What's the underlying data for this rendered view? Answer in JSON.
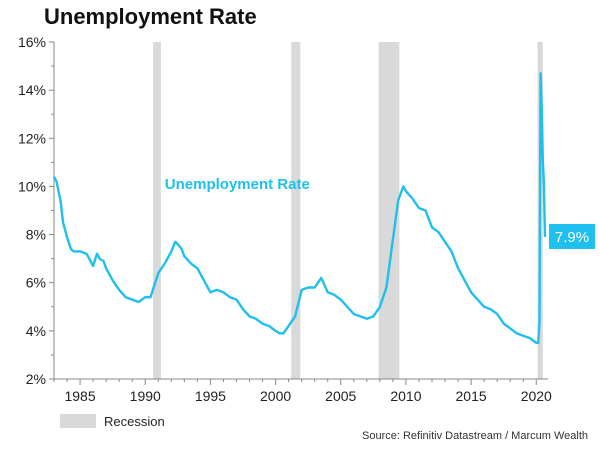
{
  "title": "Unemployment Rate",
  "source": "Source: Refinitiv Datastream / Marcum Wealth",
  "colors": {
    "line": "#1fbfee",
    "recession": "#d9d9d9",
    "axis": "#888888"
  },
  "chart_data": {
    "type": "line",
    "title": "Unemployment Rate",
    "xlabel": "",
    "ylabel": "",
    "xlim": [
      1983.0,
      2020.9
    ],
    "ylim": [
      2,
      16
    ],
    "y_ticks": [
      2,
      4,
      6,
      8,
      10,
      12,
      14,
      16
    ],
    "y_tick_labels": [
      "2%",
      "4%",
      "6%",
      "8%",
      "10%",
      "12%",
      "14%",
      "16%"
    ],
    "x_ticks": [
      1985,
      1990,
      1995,
      2000,
      2005,
      2010,
      2015,
      2020
    ],
    "x_tick_labels": [
      "1985",
      "1990",
      "1995",
      "2000",
      "2005",
      "2010",
      "2015",
      "2020"
    ],
    "grid": false,
    "series": [
      {
        "name": "Unemployment Rate",
        "x": [
          1983.0,
          1983.2,
          1983.5,
          1983.7,
          1984.0,
          1984.3,
          1984.5,
          1985.0,
          1985.5,
          1986.0,
          1986.3,
          1986.5,
          1986.8,
          1987.0,
          1987.5,
          1988.0,
          1988.5,
          1989.0,
          1989.5,
          1990.0,
          1990.4,
          1990.7,
          1991.0,
          1991.5,
          1992.0,
          1992.3,
          1992.5,
          1992.8,
          1993.0,
          1993.5,
          1994.0,
          1994.5,
          1995.0,
          1995.5,
          1996.0,
          1996.5,
          1997.0,
          1997.5,
          1998.0,
          1998.5,
          1999.0,
          1999.5,
          2000.0,
          2000.3,
          2000.6,
          2001.0,
          2001.5,
          2002.0,
          2002.5,
          2003.0,
          2003.5,
          2004.0,
          2004.5,
          2005.0,
          2005.5,
          2006.0,
          2006.5,
          2007.0,
          2007.5,
          2008.0,
          2008.5,
          2009.0,
          2009.4,
          2009.8,
          2010.0,
          2010.5,
          2011.0,
          2011.5,
          2012.0,
          2012.5,
          2013.0,
          2013.5,
          2014.0,
          2014.5,
          2015.0,
          2015.5,
          2016.0,
          2016.5,
          2017.0,
          2017.5,
          2018.0,
          2018.5,
          2019.0,
          2019.5,
          2020.0,
          2020.15,
          2020.25,
          2020.33,
          2020.42,
          2020.5,
          2020.58,
          2020.67
        ],
        "y": [
          10.4,
          10.2,
          9.4,
          8.5,
          7.9,
          7.4,
          7.3,
          7.3,
          7.2,
          6.7,
          7.2,
          7.0,
          6.9,
          6.6,
          6.1,
          5.7,
          5.4,
          5.3,
          5.2,
          5.4,
          5.4,
          5.9,
          6.4,
          6.8,
          7.3,
          7.7,
          7.6,
          7.4,
          7.1,
          6.8,
          6.6,
          6.1,
          5.6,
          5.7,
          5.6,
          5.4,
          5.3,
          4.9,
          4.6,
          4.5,
          4.3,
          4.2,
          4.0,
          3.9,
          3.9,
          4.2,
          4.6,
          5.7,
          5.8,
          5.8,
          6.2,
          5.6,
          5.5,
          5.3,
          5.0,
          4.7,
          4.6,
          4.5,
          4.6,
          5.0,
          5.8,
          7.8,
          9.4,
          10.0,
          9.8,
          9.5,
          9.1,
          9.0,
          8.3,
          8.1,
          7.7,
          7.3,
          6.6,
          6.1,
          5.6,
          5.3,
          5.0,
          4.9,
          4.7,
          4.3,
          4.1,
          3.9,
          3.8,
          3.7,
          3.5,
          3.5,
          4.4,
          14.7,
          13.3,
          11.1,
          10.2,
          7.9
        ]
      }
    ],
    "recessions": [
      [
        1990.6,
        1991.2
      ],
      [
        2001.2,
        2001.9
      ],
      [
        2007.9,
        2009.5
      ],
      [
        2020.1,
        2020.5
      ]
    ],
    "annotations": [
      {
        "text": "Unemployment Rate",
        "x": 1991.5,
        "y": 9.9
      },
      {
        "text": "7.9%",
        "x": 2020.67,
        "y": 7.9
      }
    ],
    "legend": {
      "position": "bottom-left",
      "entries": [
        "Recession"
      ]
    }
  }
}
